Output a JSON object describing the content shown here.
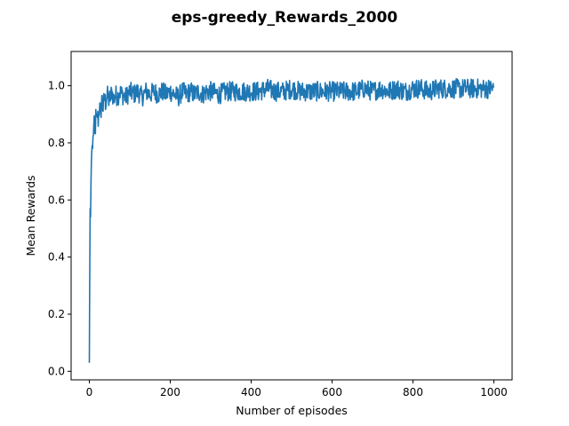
{
  "chart_data": {
    "type": "line",
    "title": "eps-greedy_Rewards_2000",
    "xlabel": "Number of episodes",
    "ylabel": "Mean Rewards",
    "xlim": [
      -45,
      1045
    ],
    "ylim": [
      -0.03,
      1.12
    ],
    "xticks": [
      0,
      200,
      400,
      600,
      800,
      1000
    ],
    "yticks": [
      0.0,
      0.2,
      0.4,
      0.6,
      0.8,
      1.0
    ],
    "xtick_labels": [
      "0",
      "200",
      "400",
      "600",
      "800",
      "1000"
    ],
    "ytick_labels": [
      "0.0",
      "0.2",
      "0.4",
      "0.6",
      "0.8",
      "1.0"
    ],
    "grid": false,
    "color": "#1f77b4",
    "series": [
      {
        "x": [
          0,
          1,
          2,
          3,
          4,
          5,
          6,
          7,
          8,
          10,
          12,
          14,
          16,
          18,
          20,
          22,
          25,
          28,
          31,
          34,
          37,
          40,
          44,
          48,
          52,
          56,
          60,
          65,
          70,
          75,
          80,
          90,
          100,
          110,
          120,
          130,
          140,
          150,
          160,
          170,
          180,
          190,
          200,
          210,
          220,
          230,
          240,
          250,
          260,
          270,
          280,
          290,
          300,
          320,
          340,
          360,
          380,
          400,
          420,
          440,
          460,
          480,
          500,
          520,
          540,
          560,
          580,
          600,
          620,
          640,
          660,
          680,
          700,
          720,
          740,
          760,
          780,
          800,
          820,
          840,
          860,
          880,
          900,
          920,
          940,
          960,
          980,
          1000
        ],
        "y": [
          0.03,
          0.33,
          0.57,
          0.54,
          0.65,
          0.73,
          0.77,
          0.79,
          0.78,
          0.84,
          0.86,
          0.82,
          0.89,
          0.87,
          0.9,
          0.88,
          0.93,
          0.9,
          0.95,
          0.92,
          0.96,
          0.94,
          0.97,
          0.95,
          0.96,
          0.98,
          0.95,
          0.97,
          0.96,
          0.98,
          0.97,
          0.96,
          0.98,
          0.97,
          0.98,
          0.96,
          0.98,
          0.97,
          0.98,
          0.97,
          0.98,
          0.97,
          0.98,
          0.97,
          0.96,
          0.98,
          0.97,
          0.98,
          0.97,
          0.98,
          0.97,
          0.98,
          0.98,
          0.97,
          0.98,
          0.98,
          0.98,
          0.98,
          0.98,
          0.99,
          0.98,
          0.98,
          0.99,
          0.98,
          0.98,
          0.98,
          0.98,
          0.98,
          0.98,
          0.98,
          0.98,
          0.99,
          0.98,
          0.99,
          0.98,
          0.99,
          0.98,
          0.99,
          0.99,
          0.98,
          0.99,
          0.99,
          0.99,
          0.99,
          0.99,
          0.99,
          0.99,
          0.99
        ],
        "noise_amplitude": 0.035
      }
    ]
  }
}
